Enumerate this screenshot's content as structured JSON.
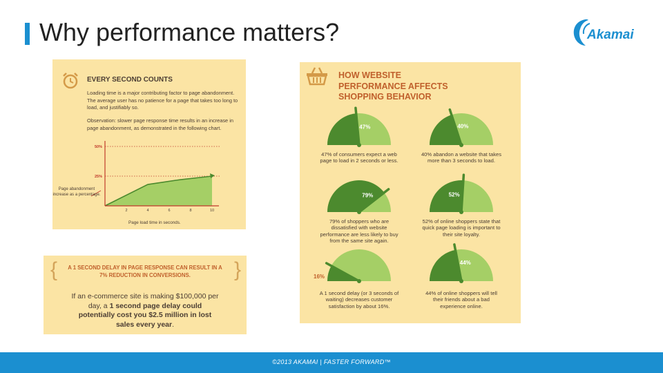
{
  "slide": {
    "title": "Why performance matters?",
    "logo_text": "Akamai",
    "footer": "©2013 AKAMAI  |  FASTER FORWARD™"
  },
  "colors": {
    "accent": "#1b8fd0",
    "panel": "#fbe4a4",
    "gauge_fill": "#a5cf66",
    "gauge_dark": "#4c8a2e",
    "chart_axis": "#c0392b",
    "text_brown": "#4b3d33"
  },
  "every_second": {
    "heading": "EVERY SECOND COUNTS",
    "para1": "Loading time is a major contributing factor to page abandonment. The average user has no patience for a page that takes too long to load, and justifiably so.",
    "para2": "Observation: slower page response time results in an increase in page abandonment, as demonstrated in the following chart.",
    "icon": "alarm-clock-icon"
  },
  "chart_data": {
    "type": "area",
    "x": [
      0,
      4,
      7,
      10
    ],
    "y": [
      0,
      18,
      22,
      25
    ],
    "xlabel": "Page load time in seconds.",
    "ylabel": "Page abandonment increase as a percentage.",
    "x_ticks": [
      "2",
      "4",
      "6",
      "8",
      "10"
    ],
    "y_ticks": [
      "25%",
      "50%"
    ],
    "xlim": [
      0,
      10
    ],
    "ylim": [
      0,
      50
    ],
    "grid": "dotted reference lines at 25% and 50%"
  },
  "delay_box": {
    "headline": "A 1 SECOND DELAY IN PAGE RESPONSE CAN RESULT IN A 7% REDUCTION IN CONVERSIONS.",
    "body_start": "If an e-commerce site is making $100,000 per day, a ",
    "body_bold1": "1 second page delay could potentially cost you $2.5 million in lost sales every year",
    "body_end": ".",
    "brace_left": "{",
    "brace_right": "}"
  },
  "shopping": {
    "heading_line1": "HOW WEBSITE",
    "heading_line2": "PERFORMANCE AFFECTS",
    "heading_line3": "SHOPPING BEHAVIOR",
    "icon": "shopping-basket-icon",
    "side_label": "16%",
    "gauges": [
      {
        "percent": "47%",
        "value": 47,
        "caption": "47% of consumers expect a web page to load in 2 seconds or less."
      },
      {
        "percent": "40%",
        "value": 40,
        "caption": "40% abandon a website that takes more than 3 seconds to load."
      },
      {
        "percent": "79%",
        "value": 79,
        "caption": "79% of shoppers who are dissatisfied with website performance are less likely to buy from the same site again."
      },
      {
        "percent": "52%",
        "value": 52,
        "caption": "52% of online shoppers state that quick page loading is important to their site loyalty."
      },
      {
        "percent": "",
        "value": 16,
        "caption": "A 1 second delay (or 3 seconds of waiting) decreases customer satisfaction by about 16%."
      },
      {
        "percent": "44%",
        "value": 44,
        "caption": "44% of online shoppers will tell their friends about a bad experience online."
      }
    ]
  }
}
